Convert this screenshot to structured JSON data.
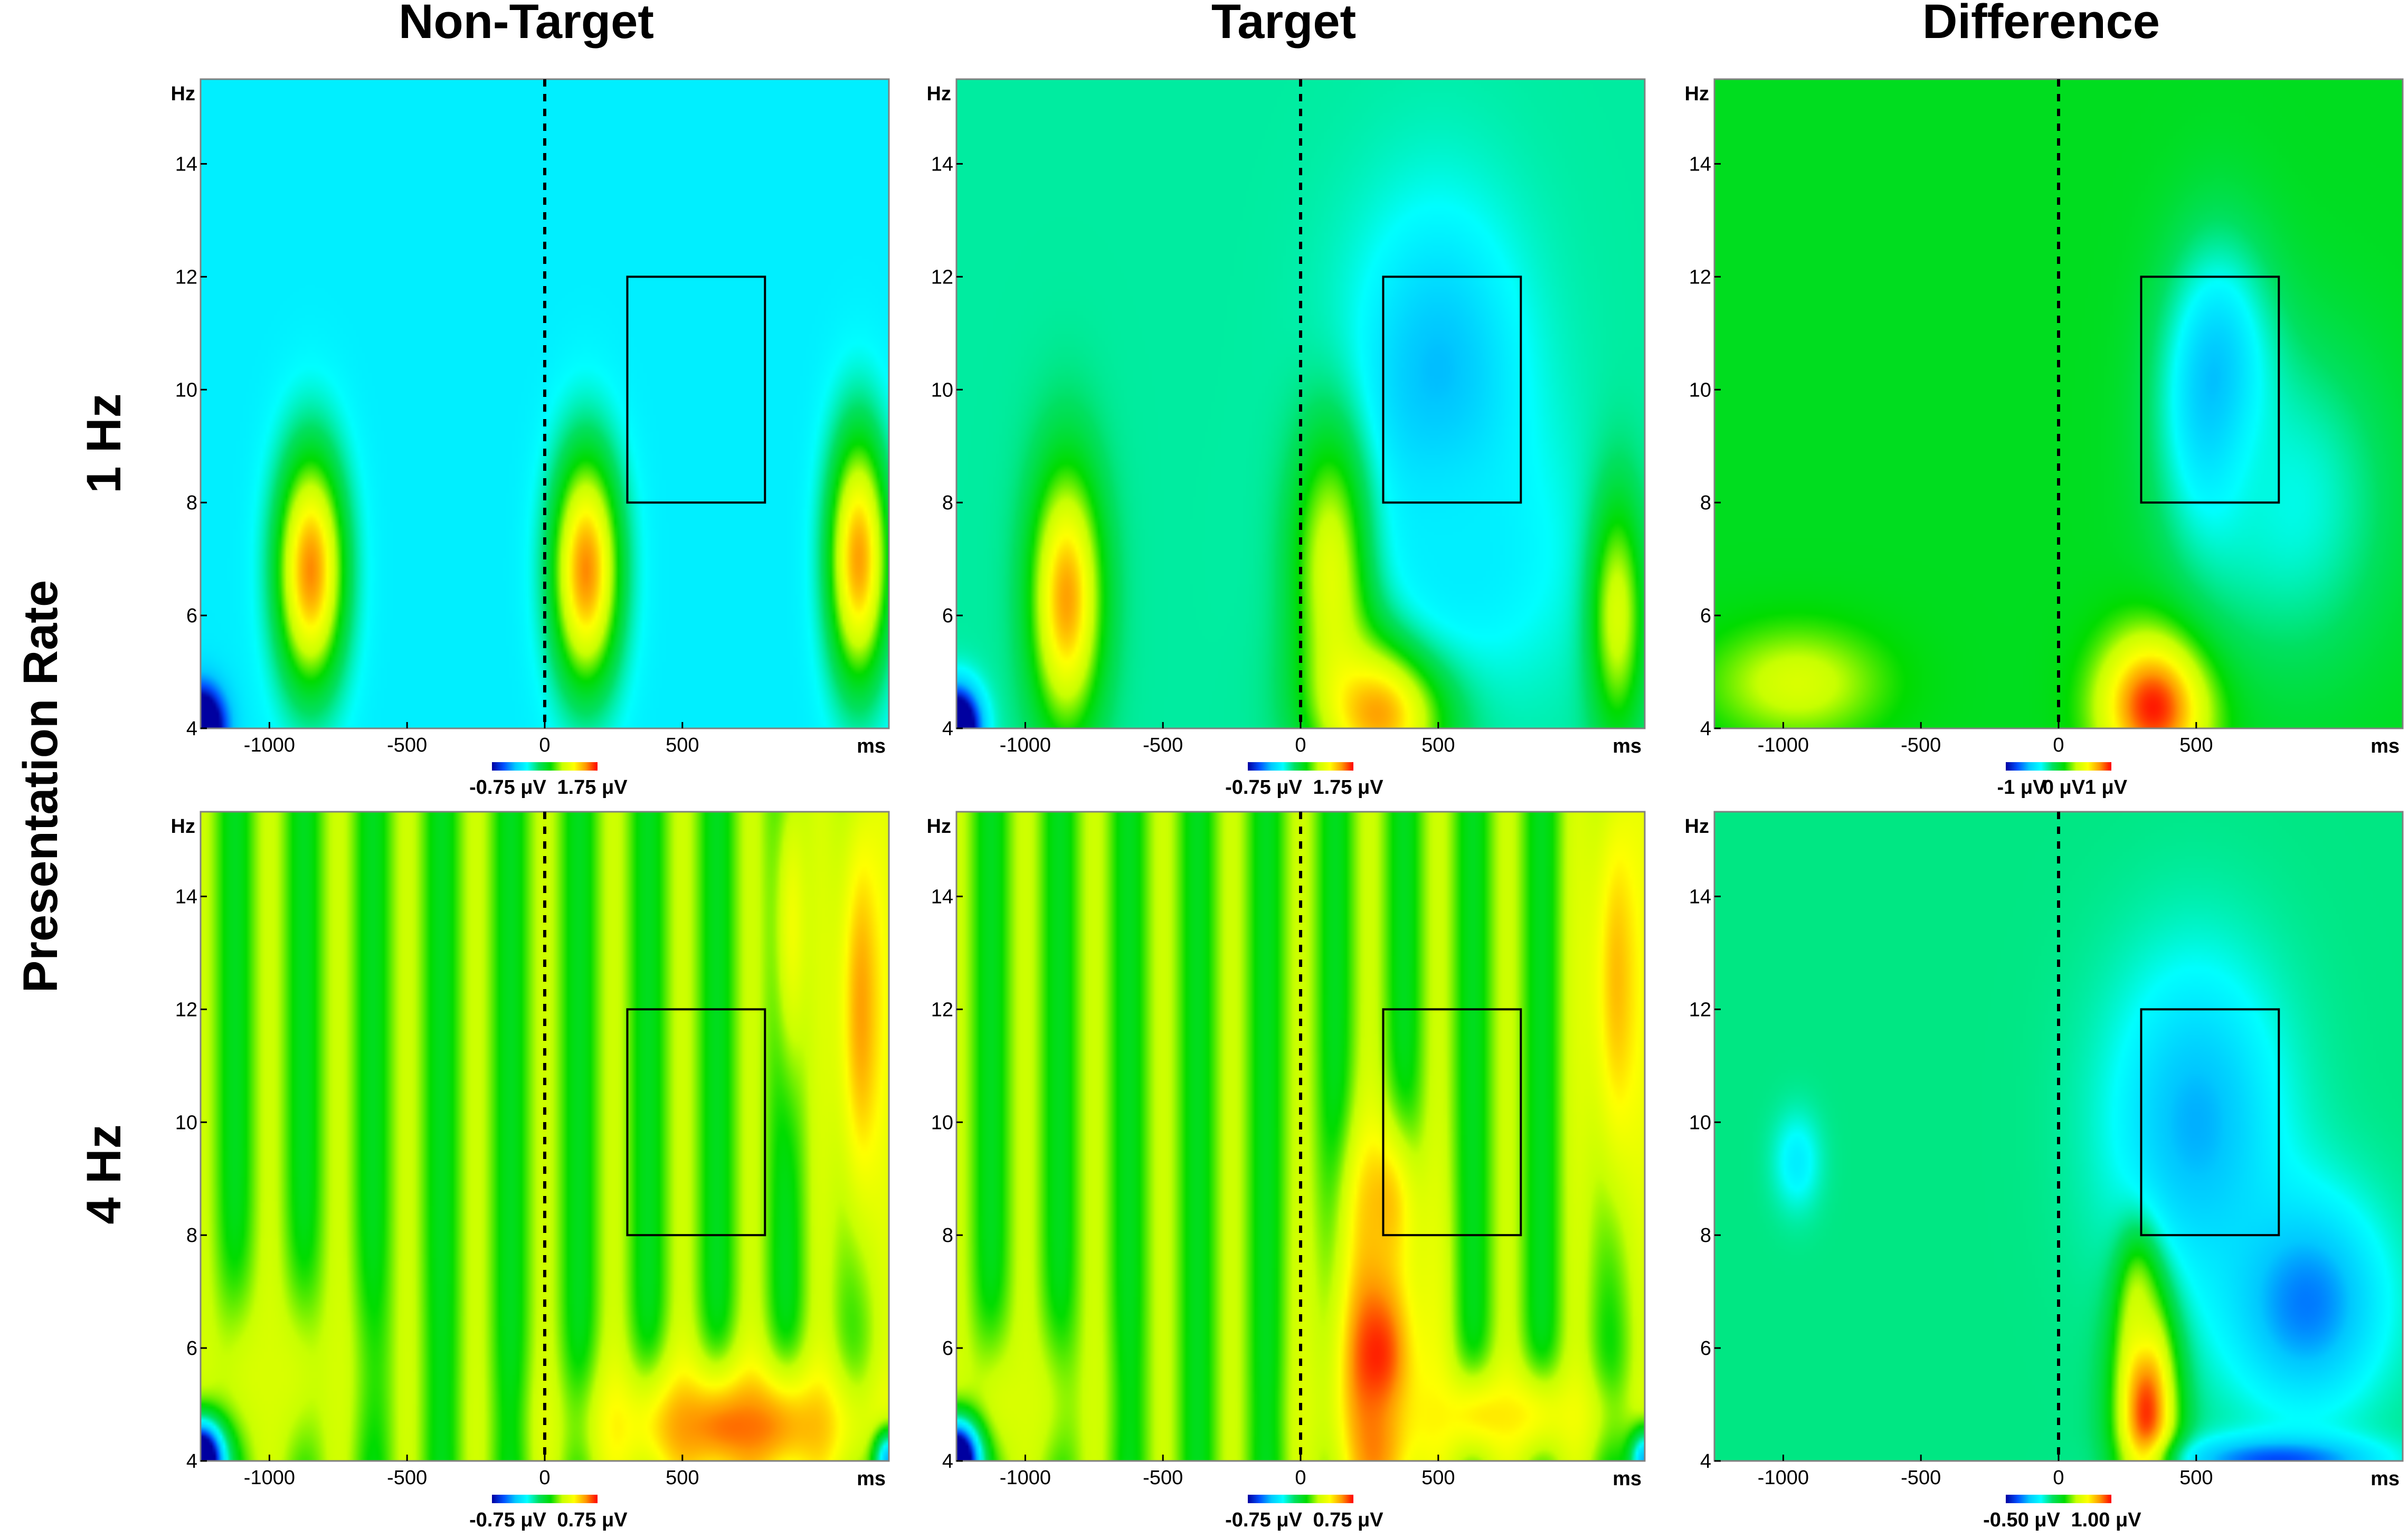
{
  "figure": {
    "column_titles": [
      "Non-Target",
      "Target",
      "Difference"
    ],
    "row_titles": [
      "1 Hz",
      "4 Hz"
    ],
    "side_title": "Presentation Rate"
  },
  "colormap": [
    "#0000a0",
    "#0050ff",
    "#00c8ff",
    "#00ffff",
    "#00e060",
    "#00dc00",
    "#c8ff00",
    "#ffff00",
    "#ff9900",
    "#ff0000"
  ],
  "chart_data": [
    {
      "id": "nontarget-1hz",
      "type": "heatmap",
      "title": "Non-Target",
      "row": "1 Hz",
      "xlabel": "ms",
      "ylabel": "Hz",
      "xlim": [
        -1250,
        1250
      ],
      "ylim": [
        4,
        15.5
      ],
      "xticks": [
        -1000,
        -500,
        0,
        500
      ],
      "yticks": [
        4,
        6,
        8,
        10,
        12,
        14
      ],
      "stimulus_onset_ms": 0,
      "roi": {
        "x": [
          300,
          800
        ],
        "y": [
          8,
          12
        ]
      },
      "background": 0.3,
      "blobs": [
        {
          "x": -850,
          "y": 6.8,
          "sx": 90,
          "sy": 1.5,
          "value": 0.9
        },
        {
          "x": 150,
          "y": 6.8,
          "sx": 90,
          "sy": 1.5,
          "value": 0.9
        },
        {
          "x": 1140,
          "y": 7.0,
          "sx": 80,
          "sy": 1.6,
          "value": 0.88
        },
        {
          "x": -1250,
          "y": 4.0,
          "sx": 60,
          "sy": 0.5,
          "value": -0.3
        }
      ],
      "colorbar": {
        "min_label": "-0.75 μV",
        "max_label": "1.75 μV"
      }
    },
    {
      "id": "target-1hz",
      "type": "heatmap",
      "title": "Target",
      "row": "1 Hz",
      "xlabel": "ms",
      "ylabel": "Hz",
      "xlim": [
        -1250,
        1250
      ],
      "ylim": [
        4,
        15.5
      ],
      "xticks": [
        -1000,
        -500,
        0,
        500
      ],
      "yticks": [
        4,
        6,
        8,
        10,
        12,
        14
      ],
      "stimulus_onset_ms": 0,
      "roi": {
        "x": [
          300,
          800
        ],
        "y": [
          8,
          12
        ]
      },
      "background": 0.4,
      "blobs": [
        {
          "x": -850,
          "y": 6.3,
          "sx": 90,
          "sy": 1.6,
          "value": 0.88
        },
        {
          "x": 150,
          "y": 7.0,
          "sx": 110,
          "sy": 1.6,
          "value": 0.95
        },
        {
          "x": 300,
          "y": 4.5,
          "sx": 160,
          "sy": 1.0,
          "value": 1.0
        },
        {
          "x": 500,
          "y": 10.0,
          "sx": 220,
          "sy": 2.2,
          "value": 0.2
        },
        {
          "x": 600,
          "y": 7.0,
          "sx": 300,
          "sy": 1.6,
          "value": 0.3
        },
        {
          "x": 1150,
          "y": 6.0,
          "sx": 70,
          "sy": 1.5,
          "value": 0.7
        },
        {
          "x": -1250,
          "y": 4.0,
          "sx": 60,
          "sy": 0.5,
          "value": -0.3
        }
      ],
      "colorbar": {
        "min_label": "-0.75 μV",
        "max_label": "1.75 μV"
      }
    },
    {
      "id": "difference-1hz",
      "type": "heatmap",
      "title": "Difference",
      "row": "1 Hz",
      "xlabel": "ms",
      "ylabel": "Hz",
      "xlim": [
        -1250,
        1250
      ],
      "ylim": [
        4,
        15.5
      ],
      "xticks": [
        -1000,
        -500,
        0,
        500
      ],
      "yticks": [
        4,
        6,
        8,
        10,
        12,
        14
      ],
      "stimulus_onset_ms": 0,
      "roi": {
        "x": [
          300,
          800
        ],
        "y": [
          8,
          12
        ]
      },
      "background": 0.52,
      "blobs": [
        {
          "x": 350,
          "y": 4.4,
          "sx": 140,
          "sy": 0.9,
          "value": 1.0
        },
        {
          "x": 580,
          "y": 9.8,
          "sx": 140,
          "sy": 1.8,
          "value": 0.15
        },
        {
          "x": 850,
          "y": 8.0,
          "sx": 250,
          "sy": 2.0,
          "value": 0.35
        },
        {
          "x": -950,
          "y": 4.8,
          "sx": 220,
          "sy": 0.7,
          "value": 0.7
        }
      ],
      "colorbar": {
        "min_label": "-1 μV",
        "mid_label": "0 μV",
        "max_label": "1 μV"
      }
    },
    {
      "id": "nontarget-4hz",
      "type": "heatmap",
      "title": "Non-Target",
      "row": "4 Hz",
      "xlabel": "ms",
      "ylabel": "Hz",
      "xlim": [
        -1250,
        1250
      ],
      "ylim": [
        4,
        15.5
      ],
      "xticks": [
        -1000,
        -500,
        0,
        500
      ],
      "yticks": [
        4,
        6,
        8,
        10,
        12,
        14
      ],
      "stimulus_onset_ms": 0,
      "roi": {
        "x": [
          300,
          800
        ],
        "y": [
          8,
          12
        ]
      },
      "background": 0.6,
      "stripes": {
        "period_ms": 250,
        "amplitude": 0.08
      },
      "blobs": [
        {
          "x": 700,
          "y": 4.6,
          "sx": 350,
          "sy": 0.8,
          "value": 0.92
        },
        {
          "x": 1150,
          "y": 12.0,
          "sx": 70,
          "sy": 3.0,
          "value": 0.88
        },
        {
          "x": 900,
          "y": 13.5,
          "sx": 50,
          "sy": 2.0,
          "value": 0.75
        },
        {
          "x": -1000,
          "y": 5.5,
          "sx": 250,
          "sy": 1.2,
          "value": 0.7
        },
        {
          "x": -1250,
          "y": 4.0,
          "sx": 60,
          "sy": 0.5,
          "value": -0.3
        },
        {
          "x": 1250,
          "y": 4.0,
          "sx": 40,
          "sy": 0.4,
          "value": 0.2
        }
      ],
      "colorbar": {
        "min_label": "-0.75 μV",
        "max_label": "0.75 μV"
      }
    },
    {
      "id": "target-4hz",
      "type": "heatmap",
      "title": "Target",
      "row": "4 Hz",
      "xlabel": "ms",
      "ylabel": "Hz",
      "xlim": [
        -1250,
        1250
      ],
      "ylim": [
        4,
        15.5
      ],
      "xticks": [
        -1000,
        -500,
        0,
        500
      ],
      "yticks": [
        4,
        6,
        8,
        10,
        12,
        14
      ],
      "stimulus_onset_ms": 0,
      "roi": {
        "x": [
          300,
          800
        ],
        "y": [
          8,
          12
        ]
      },
      "background": 0.6,
      "stripes": {
        "period_ms": 250,
        "amplitude": 0.08
      },
      "blobs": [
        {
          "x": 280,
          "y": 5.5,
          "sx": 120,
          "sy": 2.0,
          "value": 1.0
        },
        {
          "x": 300,
          "y": 8.5,
          "sx": 90,
          "sy": 1.0,
          "value": 0.85
        },
        {
          "x": 700,
          "y": 4.8,
          "sx": 300,
          "sy": 0.6,
          "value": 0.8
        },
        {
          "x": 1150,
          "y": 12.5,
          "sx": 80,
          "sy": 3.0,
          "value": 0.85
        },
        {
          "x": -1050,
          "y": 5.0,
          "sx": 200,
          "sy": 1.0,
          "value": 0.7
        },
        {
          "x": -1250,
          "y": 4.0,
          "sx": 60,
          "sy": 0.5,
          "value": -0.3
        },
        {
          "x": 1250,
          "y": 4.0,
          "sx": 40,
          "sy": 0.4,
          "value": 0.2
        }
      ],
      "colorbar": {
        "min_label": "-0.75 μV",
        "max_label": "0.75 μV"
      }
    },
    {
      "id": "difference-4hz",
      "type": "heatmap",
      "title": "Difference",
      "row": "4 Hz",
      "xlabel": "ms",
      "ylabel": "Hz",
      "xlim": [
        -1250,
        1250
      ],
      "ylim": [
        4,
        15.5
      ],
      "xticks": [
        -1000,
        -500,
        0,
        500
      ],
      "yticks": [
        4,
        6,
        8,
        10,
        12,
        14
      ],
      "stimulus_onset_ms": 0,
      "roi": {
        "x": [
          300,
          800
        ],
        "y": [
          8,
          12
        ]
      },
      "background": 0.42,
      "blobs": [
        {
          "x": 320,
          "y": 5.0,
          "sx": 80,
          "sy": 1.6,
          "value": 1.0
        },
        {
          "x": 300,
          "y": 7.0,
          "sx": 50,
          "sy": 0.8,
          "value": 0.8
        },
        {
          "x": 500,
          "y": 10.0,
          "sx": 220,
          "sy": 2.0,
          "value": 0.2
        },
        {
          "x": 900,
          "y": 6.8,
          "sx": 200,
          "sy": 1.3,
          "value": 0.15
        },
        {
          "x": -950,
          "y": 9.3,
          "sx": 60,
          "sy": 0.6,
          "value": 0.3
        },
        {
          "x": 800,
          "y": 4.0,
          "sx": 250,
          "sy": 0.3,
          "value": 0.1
        }
      ],
      "colorbar": {
        "min_label": "-0.50 μV",
        "max_label": "1.00 μV"
      }
    }
  ]
}
